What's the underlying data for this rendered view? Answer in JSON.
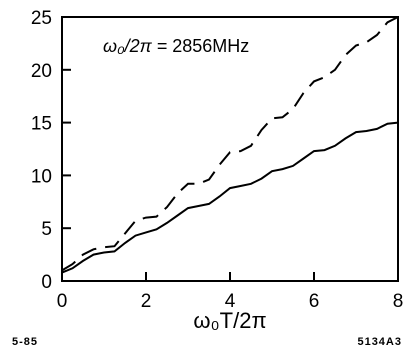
{
  "chart_data": {
    "type": "line",
    "title": "",
    "xlabel": "ω₀T/2π",
    "ylabel": "",
    "xlim": [
      0,
      8
    ],
    "ylim": [
      0,
      25
    ],
    "x_ticks": [
      0,
      2,
      4,
      6,
      8
    ],
    "y_ticks": [
      0,
      5,
      10,
      15,
      20,
      25
    ],
    "x_tick_labels": [
      "0",
      "2",
      "4",
      "6",
      "8"
    ],
    "y_tick_labels": [
      "0",
      "5",
      "10",
      "15",
      "20",
      "25"
    ],
    "grid": false,
    "annotation": {
      "main": "ω₀/2π = ",
      "value": "2856MHz"
    },
    "footer_left": "5-85",
    "footer_right": "5134A3",
    "series": [
      {
        "style": "solid",
        "x": [
          0,
          0.25,
          0.5,
          0.75,
          1.0,
          1.25,
          1.5,
          1.75,
          2.0,
          2.25,
          2.5,
          2.75,
          3.0,
          3.25,
          3.5,
          3.75,
          4.0,
          4.25,
          4.5,
          4.75,
          5.0,
          5.25,
          5.5,
          5.75,
          6.0,
          6.25,
          6.5,
          6.75,
          7.0,
          7.25,
          7.5,
          7.75,
          8.0
        ],
        "y": [
          0.8,
          1.2,
          1.9,
          2.5,
          2.7,
          2.8,
          3.6,
          4.3,
          4.6,
          4.9,
          5.5,
          6.2,
          6.9,
          7.1,
          7.3,
          8.0,
          8.8,
          9.0,
          9.2,
          9.7,
          10.4,
          10.6,
          10.9,
          11.6,
          12.3,
          12.4,
          12.8,
          13.5,
          14.1,
          14.2,
          14.4,
          14.9,
          15.0
        ]
      },
      {
        "style": "dashed",
        "x": [
          0,
          0.25,
          0.5,
          0.75,
          1.0,
          1.25,
          1.5,
          1.75,
          2.0,
          2.25,
          2.5,
          2.75,
          3.0,
          3.25,
          3.5,
          3.75,
          4.0,
          4.25,
          4.5,
          4.75,
          5.0,
          5.25,
          5.5,
          5.75,
          6.0,
          6.25,
          6.5,
          6.75,
          7.0,
          7.25,
          7.5,
          7.75,
          8.0
        ],
        "y": [
          1.0,
          1.6,
          2.5,
          3.0,
          3.2,
          3.3,
          4.5,
          5.7,
          6.0,
          6.1,
          7.0,
          8.3,
          9.2,
          9.2,
          9.6,
          11.0,
          12.2,
          12.3,
          12.8,
          14.3,
          15.4,
          15.5,
          16.3,
          17.8,
          18.9,
          19.3,
          20.0,
          21.4,
          22.3,
          22.6,
          23.3,
          24.5,
          25.0
        ]
      }
    ]
  }
}
